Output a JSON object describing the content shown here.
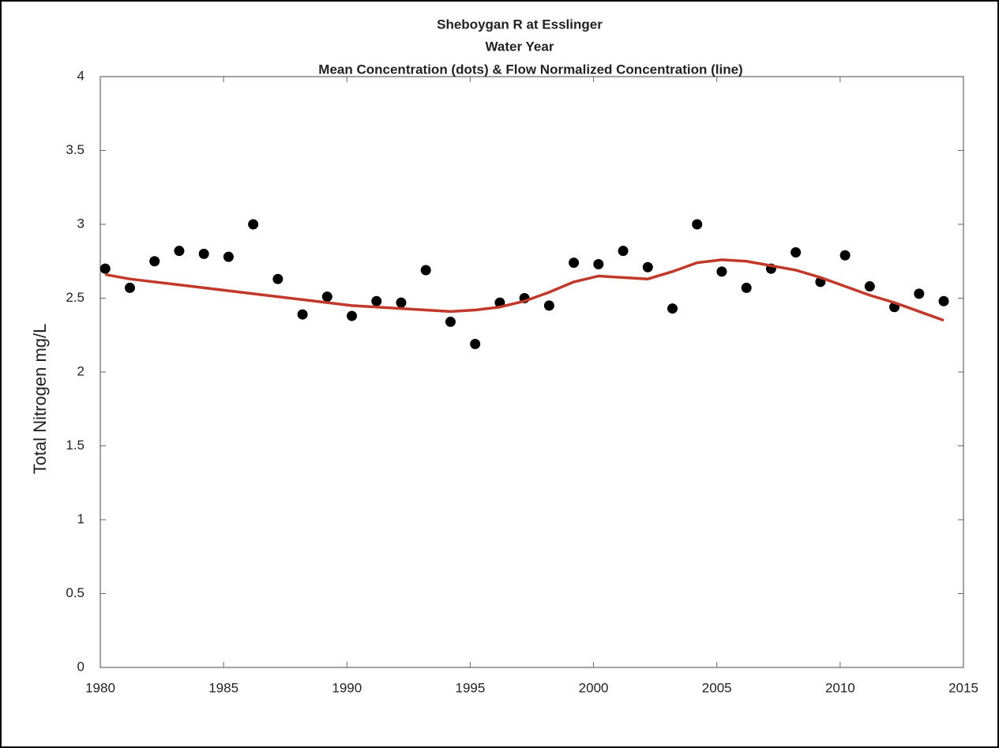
{
  "chart_data": {
    "type": "scatter",
    "title": [
      "Sheboygan R at Esslinger",
      "Water Year",
      "Mean Concentration (dots) & Flow Normalized Concentration (line)"
    ],
    "y_label": "Total Nitrogen mg/L",
    "x": [
      1980.2,
      1981.2,
      1982.2,
      1983.2,
      1984.2,
      1985.2,
      1986.2,
      1987.2,
      1988.2,
      1989.2,
      1990.2,
      1991.2,
      1992.2,
      1993.2,
      1994.2,
      1995.2,
      1996.2,
      1997.2,
      1998.2,
      1999.2,
      2000.2,
      2001.2,
      2002.2,
      2003.2,
      2004.2,
      2005.2,
      2006.2,
      2007.2,
      2008.2,
      2009.2,
      2010.2,
      2011.2,
      2012.2,
      2013.2,
      2014.2
    ],
    "series": [
      {
        "type": "scatter",
        "color": "#000000",
        "values": [
          2.7,
          2.57,
          2.75,
          2.82,
          2.8,
          2.78,
          3.0,
          2.63,
          2.39,
          2.51,
          2.38,
          2.48,
          2.47,
          2.69,
          2.34,
          2.19,
          2.47,
          2.5,
          2.45,
          2.74,
          2.73,
          2.82,
          2.71,
          2.43,
          3.0,
          2.68,
          2.57,
          2.7,
          2.81,
          2.61,
          2.79,
          2.58,
          2.44,
          2.53,
          2.48
        ]
      },
      {
        "type": "line",
        "color": "#c0392b",
        "values": [
          2.66,
          2.63,
          2.61,
          2.59,
          2.57,
          2.55,
          2.53,
          2.51,
          2.49,
          2.47,
          2.45,
          2.44,
          2.43,
          2.42,
          2.41,
          2.42,
          2.44,
          2.48,
          2.54,
          2.61,
          2.65,
          2.64,
          2.63,
          2.68,
          2.74,
          2.76,
          2.75,
          2.72,
          2.69,
          2.64,
          2.58,
          2.52,
          2.47,
          2.41,
          2.35
        ]
      }
    ],
    "xlim": [
      1980,
      2015
    ],
    "xticks": [
      1980,
      1985,
      1990,
      1995,
      2000,
      2005,
      2010,
      2015
    ],
    "ylim": [
      0,
      4
    ],
    "yticks": [
      0,
      0.5,
      1,
      1.5,
      2,
      2.5,
      3,
      3.5,
      4
    ]
  }
}
